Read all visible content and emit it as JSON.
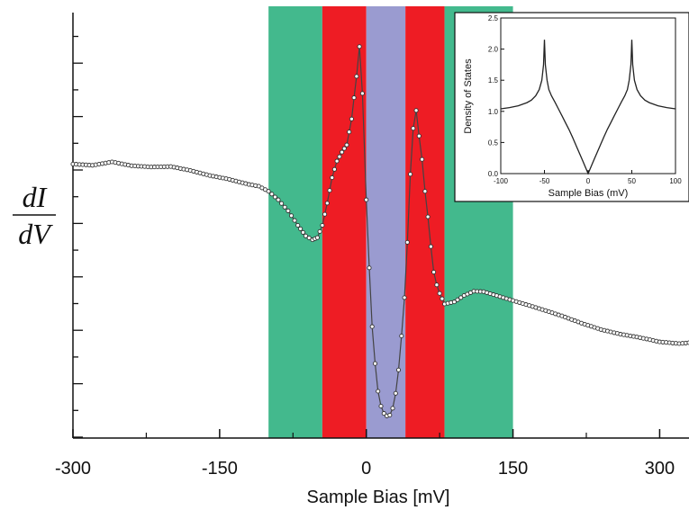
{
  "chart_data": [
    {
      "type": "line",
      "xlabel": "Sample Bias [mV]",
      "ylabel_numerator": "dI",
      "ylabel_denominator": "dV",
      "xlim": [
        -300,
        330
      ],
      "ylim": [
        0,
        1
      ],
      "x_ticks": [
        -300,
        -150,
        0,
        150,
        300
      ],
      "x_tick_labels": [
        "-300",
        "-150",
        "0",
        "150",
        "300"
      ],
      "markers": "open-circle",
      "bands": [
        {
          "x0": -100,
          "x1": -45,
          "color": "#43b98d"
        },
        {
          "x0": -45,
          "x1": 0,
          "color": "#ee1c24"
        },
        {
          "x0": 0,
          "x1": 40,
          "color": "#9a9bd0"
        },
        {
          "x0": 40,
          "x1": 80,
          "color": "#ee1c24"
        },
        {
          "x0": 80,
          "x1": 150,
          "color": "#43b98d"
        }
      ],
      "series": [
        {
          "x": [
            -300,
            -280,
            -260,
            -240,
            -220,
            -200,
            -180,
            -160,
            -140,
            -120,
            -110,
            -100,
            -90,
            -80,
            -70,
            -62,
            -55,
            -50,
            -45,
            -40,
            -35,
            -30,
            -25,
            -20,
            -15,
            -10,
            -7,
            -4,
            0,
            3,
            6,
            9,
            12,
            15,
            18,
            21,
            24,
            27,
            30,
            33,
            36,
            39,
            42,
            45,
            48,
            51,
            54,
            57,
            60,
            63,
            66,
            69,
            72,
            75,
            80,
            90,
            100,
            110,
            120,
            140,
            160,
            180,
            200,
            220,
            240,
            260,
            280,
            300,
            320,
            330
          ],
          "y": [
            0.644,
            0.641,
            0.649,
            0.64,
            0.637,
            0.638,
            0.629,
            0.617,
            0.608,
            0.596,
            0.592,
            0.58,
            0.56,
            0.534,
            0.5,
            0.475,
            0.466,
            0.471,
            0.5,
            0.552,
            0.612,
            0.651,
            0.672,
            0.689,
            0.75,
            0.85,
            0.92,
            0.81,
            0.56,
            0.4,
            0.262,
            0.175,
            0.11,
            0.075,
            0.058,
            0.052,
            0.054,
            0.07,
            0.105,
            0.16,
            0.24,
            0.33,
            0.46,
            0.62,
            0.728,
            0.77,
            0.71,
            0.655,
            0.58,
            0.52,
            0.45,
            0.39,
            0.36,
            0.34,
            0.315,
            0.32,
            0.335,
            0.345,
            0.344,
            0.33,
            0.316,
            0.302,
            0.287,
            0.27,
            0.255,
            0.244,
            0.236,
            0.226,
            0.222,
            0.224
          ]
        }
      ]
    },
    {
      "type": "line",
      "xlabel": "Sample Bias (mV)",
      "ylabel": "Density of States",
      "xlim": [
        -100,
        100
      ],
      "ylim": [
        0,
        2.5
      ],
      "x_ticks": [
        -100,
        -50,
        0,
        50,
        100
      ],
      "x_tick_labels": [
        "-100",
        "-50",
        "0",
        "50",
        "100"
      ],
      "y_ticks": [
        0,
        0.5,
        1.0,
        1.5,
        2.0,
        2.5
      ],
      "y_tick_labels": [
        "0.0",
        "0.5",
        "1.0",
        "1.5",
        "2.0",
        "2.5"
      ],
      "series": [
        {
          "x": [
            -100,
            -90,
            -80,
            -70,
            -65,
            -60,
            -56,
            -53,
            -51,
            -50,
            -49,
            -47,
            -45,
            -42,
            -38,
            -34,
            -30,
            -26,
            -22,
            -18,
            -14,
            -10,
            -6,
            -3,
            0,
            3,
            6,
            10,
            14,
            18,
            22,
            26,
            30,
            34,
            38,
            42,
            45,
            47,
            49,
            50,
            51,
            53,
            56,
            60,
            65,
            70,
            80,
            90,
            100
          ],
          "y": [
            1.04,
            1.06,
            1.09,
            1.14,
            1.18,
            1.25,
            1.35,
            1.5,
            1.75,
            2.15,
            1.75,
            1.5,
            1.35,
            1.25,
            1.15,
            1.04,
            0.93,
            0.82,
            0.71,
            0.59,
            0.46,
            0.33,
            0.2,
            0.1,
            0.0,
            0.1,
            0.2,
            0.33,
            0.46,
            0.59,
            0.71,
            0.82,
            0.93,
            1.04,
            1.15,
            1.25,
            1.35,
            1.5,
            1.75,
            2.15,
            1.75,
            1.5,
            1.35,
            1.25,
            1.18,
            1.14,
            1.09,
            1.06,
            1.04
          ]
        }
      ]
    }
  ]
}
